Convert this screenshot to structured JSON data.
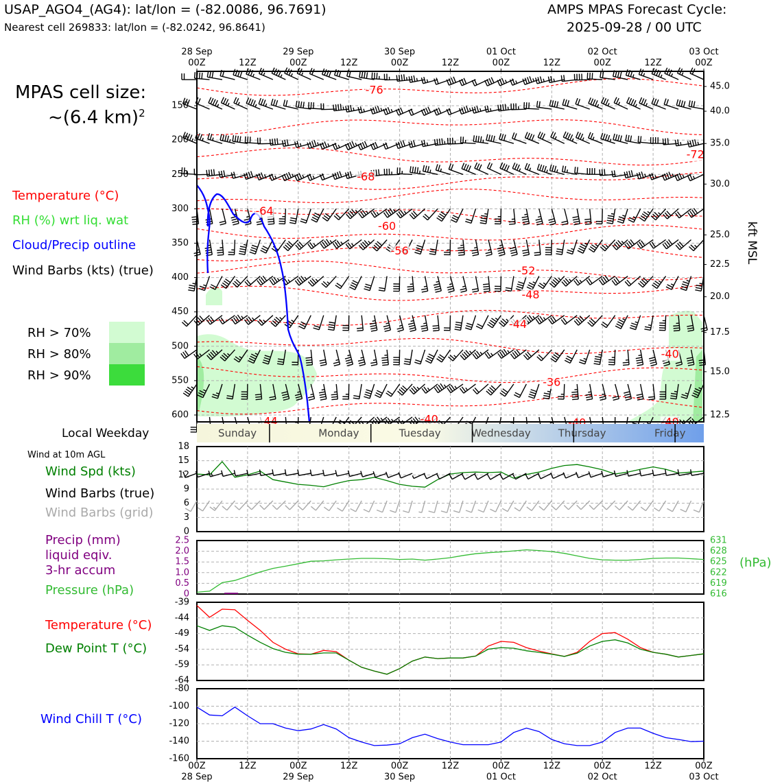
{
  "header": {
    "title_left": "USAP_AGO4_(AG4): lat/lon = (-82.0086, 96.7691)",
    "subtitle_left": "Nearest cell 269833: lat/lon = (-82.0242, 96.8641)",
    "title_right_1": "AMPS MPAS Forecast Cycle:",
    "title_right_2": "2025-09-28 / 00 UTC"
  },
  "cell_size": {
    "line1": "MPAS cell size:",
    "line2": "~(6.4 km)",
    "sup": "2"
  },
  "legend_top": {
    "temperature": "Temperature (°C)",
    "rh": "RH (%) wrt liq. wat",
    "cloud": "Cloud/Precip outline",
    "barbs": "Wind Barbs (kts) (true)"
  },
  "rh_legend": [
    {
      "label": "RH > 70%",
      "color": "#d2fbd2"
    },
    {
      "label": "RH > 80%",
      "color": "#a0eca0"
    },
    {
      "label": "RH > 90%",
      "color": "#3cdc3c"
    }
  ],
  "colors": {
    "temperature": "#ff0000",
    "rh": "#33cc33",
    "cloud": "#0000ff",
    "wind_speed": "#008000",
    "barbs_grid": "#aaaaaa",
    "precip": "#800080",
    "pressure": "#33bb33",
    "dewpoint": "#008000",
    "wind_chill": "#0000ff"
  },
  "weekday": {
    "label": "Local Weekday",
    "days": [
      "Sunday",
      "Monday",
      "Tuesday",
      "Wednesday",
      "Thursday",
      "Friday"
    ]
  },
  "legend_10m": {
    "title": "Wind at 10m AGL",
    "speed": "Wind Spd (kts)",
    "barbs_true": "Wind Barbs (true)",
    "barbs_grid": "Wind Barbs (grid)"
  },
  "legend_precip": {
    "line1": "Precip (mm)",
    "line2": "liquid eqiv.",
    "line3": "3-hr accum",
    "pressure": "Pressure (hPa)",
    "hpa_unit": "(hPa)"
  },
  "legend_temp": {
    "temp": "Temperature (°C)",
    "dew": "Dew Point T (°C)"
  },
  "legend_chill": {
    "label": "Wind Chill T (°C)"
  },
  "chart_data": [
    {
      "type": "line",
      "panel": "time-height cross section",
      "x_labels_top": [
        {
          "day": "28 Sep",
          "hour": "00Z"
        },
        {
          "day": "",
          "hour": "12Z"
        },
        {
          "day": "29 Sep",
          "hour": "00Z"
        },
        {
          "day": "",
          "hour": "12Z"
        },
        {
          "day": "30 Sep",
          "hour": "00Z"
        },
        {
          "day": "",
          "hour": "12Z"
        },
        {
          "day": "01 Oct",
          "hour": "00Z"
        },
        {
          "day": "",
          "hour": "12Z"
        },
        {
          "day": "02 Oct",
          "hour": "00Z"
        },
        {
          "day": "",
          "hour": "12Z"
        },
        {
          "day": "03 Oct",
          "hour": "00Z"
        }
      ],
      "pressure_ticks": [
        150,
        200,
        250,
        300,
        350,
        400,
        450,
        500,
        550,
        600
      ],
      "ylim_hpa": [
        100,
        610
      ],
      "height_ticks_kft": [
        "45.0",
        "40.0",
        "35.0",
        "30.0",
        "25.0",
        "22.5",
        "20.0",
        "17.5",
        "15.0",
        "12.5"
      ],
      "height_tick_hpa": [
        122,
        158,
        205,
        264,
        338,
        381,
        428,
        480,
        537,
        600
      ],
      "right_axis_label": "kft MSL",
      "temperature_labels": [
        {
          "text": "-76",
          "hour": 42,
          "hpa": 128
        },
        {
          "text": "-72",
          "hour": 118,
          "hpa": 222
        },
        {
          "text": "-68",
          "hour": 40,
          "hpa": 254
        },
        {
          "text": "-64",
          "hour": 16,
          "hpa": 304
        },
        {
          "text": "-60",
          "hour": 45,
          "hpa": 326
        },
        {
          "text": "-56",
          "hour": 48,
          "hpa": 362
        },
        {
          "text": "-52",
          "hour": 78,
          "hpa": 391
        },
        {
          "text": "-48",
          "hour": 79,
          "hpa": 426
        },
        {
          "text": "-44",
          "hour": 76,
          "hpa": 469
        },
        {
          "text": "-44",
          "hour": 17,
          "hpa": 610
        },
        {
          "text": "-40",
          "hour": 112,
          "hpa": 512
        },
        {
          "text": "-40",
          "hour": 55,
          "hpa": 607
        },
        {
          "text": "-40",
          "hour": 90,
          "hpa": 612
        },
        {
          "text": "-40",
          "hour": 112,
          "hpa": 611
        },
        {
          "text": "-36",
          "hour": 84,
          "hpa": 553
        }
      ]
    },
    {
      "type": "line",
      "panel": "10m wind speed",
      "ylim": [
        0,
        18
      ],
      "y_ticks": [
        "0",
        "3",
        "6",
        "9",
        "12",
        "15",
        "18"
      ],
      "x_hours": [
        0,
        3,
        6,
        9,
        12,
        15,
        18,
        21,
        24,
        27,
        30,
        33,
        36,
        39,
        42,
        45,
        48,
        51,
        54,
        57,
        60,
        63,
        66,
        69,
        72,
        75,
        78,
        81,
        84,
        87,
        90,
        93,
        96,
        99,
        102,
        105,
        108,
        111,
        114,
        117,
        120
      ],
      "values": [
        12.2,
        12,
        14.8,
        11.5,
        12,
        12.8,
        11,
        10.5,
        10,
        9.8,
        9.5,
        10.2,
        10.8,
        11,
        11.5,
        10.8,
        10,
        9.6,
        9.4,
        11,
        12.2,
        12.5,
        12.6,
        12.5,
        12.6,
        11.3,
        12.1,
        12.6,
        13.4,
        14,
        14.2,
        13.7,
        13.1,
        12.2,
        12.6,
        13.2,
        13.7,
        13.2,
        12.4,
        12.6,
        12.8
      ]
    },
    {
      "type": "line",
      "panel": "precip and pressure",
      "precip_ylim": [
        0,
        2.5
      ],
      "precip_ticks": [
        "0",
        "0.5",
        "1.0",
        "1.5",
        "2.0",
        "2.5"
      ],
      "pressure_ylim": [
        616,
        631
      ],
      "pressure_ticks": [
        "616",
        "619",
        "622",
        "625",
        "628",
        "631"
      ],
      "precip": {
        "hour": 7,
        "value": 0.03
      },
      "pressure": [
        616.5,
        616.8,
        619.2,
        619.8,
        621,
        622.2,
        623.2,
        623.8,
        624.5,
        625.2,
        625.3,
        625.6,
        625.8,
        626,
        626,
        625.9,
        625.7,
        625.8,
        625.5,
        625.8,
        626.2,
        626.8,
        627.3,
        627.6,
        627.8,
        628.1,
        628.4,
        628.2,
        627.9,
        627.4,
        626.7,
        626,
        625.6,
        625.5,
        625.5,
        625.7,
        626,
        626.1,
        626.1,
        625.9,
        625.7
      ]
    },
    {
      "type": "line",
      "panel": "temperature and dew point",
      "ylim": [
        -64,
        -39
      ],
      "y_ticks": [
        "-39",
        "-44",
        "-49",
        "-54",
        "-59",
        "-64"
      ],
      "series": [
        {
          "name": "Temperature (°C)",
          "values": [
            -40,
            -43.8,
            -41.2,
            -41.4,
            -44.8,
            -48,
            -51.8,
            -54,
            -55.5,
            -55.6,
            -54.4,
            -54.8,
            -57.5,
            -59.8,
            -61,
            -62,
            -60.2,
            -57.8,
            -56.5,
            -57,
            -56.8,
            -56.8,
            -56.2,
            -53,
            -51.5,
            -51.8,
            -53.5,
            -54.6,
            -55.5,
            -56.3,
            -55,
            -51.5,
            -49,
            -48.7,
            -50.8,
            -53.5,
            -55,
            -55.6,
            -56.5,
            -56,
            -55.5
          ]
        },
        {
          "name": "Dew Point T (°C)",
          "values": [
            -46.5,
            -48,
            -46.5,
            -47,
            -49.5,
            -51.8,
            -53.8,
            -55,
            -55.6,
            -55.6,
            -55.2,
            -55.2,
            -57.5,
            -59.8,
            -61,
            -62,
            -60.2,
            -57.8,
            -56.5,
            -57,
            -56.8,
            -56.8,
            -56.2,
            -54,
            -53.5,
            -53.7,
            -54.5,
            -55,
            -55.6,
            -56.3,
            -55.3,
            -53,
            -51.5,
            -51,
            -52,
            -54,
            -55,
            -55.6,
            -56.5,
            -56,
            -55.5
          ]
        }
      ]
    },
    {
      "type": "line",
      "panel": "wind chill",
      "ylim": [
        -160,
        -80
      ],
      "y_ticks": [
        "-80",
        "-100",
        "-120",
        "-140",
        "-160"
      ],
      "x_labels_bottom": [
        {
          "day": "28 Sep",
          "hour": "00Z"
        },
        {
          "day": "",
          "hour": "12Z"
        },
        {
          "day": "29 Sep",
          "hour": "00Z"
        },
        {
          "day": "",
          "hour": "12Z"
        },
        {
          "day": "30 Sep",
          "hour": "00Z"
        },
        {
          "day": "",
          "hour": "12Z"
        },
        {
          "day": "01 Oct",
          "hour": "00Z"
        },
        {
          "day": "",
          "hour": "12Z"
        },
        {
          "day": "02 Oct",
          "hour": "00Z"
        },
        {
          "day": "",
          "hour": "12Z"
        },
        {
          "day": "03 Oct",
          "hour": "00Z"
        }
      ],
      "values": [
        -101,
        -110,
        -111,
        -101,
        -111,
        -120,
        -120,
        -125,
        -128,
        -126,
        -121,
        -126,
        -136,
        -141,
        -145,
        -144.5,
        -143,
        -136,
        -132,
        -137,
        -141,
        -144,
        -144,
        -144,
        -141,
        -130,
        -125,
        -129,
        -138,
        -143,
        -145,
        -145,
        -141,
        -130,
        -125,
        -125,
        -131,
        -136,
        -138,
        -140.5,
        -140
      ]
    }
  ]
}
